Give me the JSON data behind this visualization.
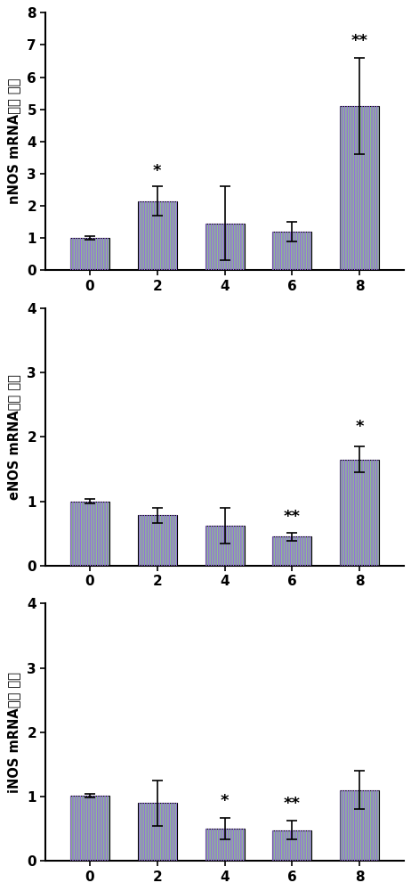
{
  "subplots": [
    {
      "ylabel": "nNOS mRNA相对 表达",
      "ylim": [
        0,
        8
      ],
      "yticks": [
        0,
        1,
        2,
        3,
        4,
        5,
        6,
        7,
        8
      ],
      "categories": [
        "0",
        "2",
        "4",
        "6",
        "8"
      ],
      "values": [
        1.0,
        2.15,
        1.45,
        1.2,
        5.1
      ],
      "errors": [
        0.05,
        0.45,
        1.15,
        0.3,
        1.5
      ],
      "annotations": [
        "",
        "*",
        "",
        "",
        "**"
      ],
      "ann_offsets": [
        0,
        0.1,
        0,
        0,
        0.15
      ]
    },
    {
      "ylabel": "eNOS mRNA相对 表达",
      "ylim": [
        0,
        4
      ],
      "yticks": [
        0,
        1,
        2,
        3,
        4
      ],
      "categories": [
        "0",
        "2",
        "4",
        "6",
        "8"
      ],
      "values": [
        1.0,
        0.78,
        0.62,
        0.45,
        1.65
      ],
      "errors": [
        0.04,
        0.12,
        0.28,
        0.06,
        0.2
      ],
      "annotations": [
        "",
        "",
        "",
        "**",
        "*"
      ],
      "ann_offsets": [
        0,
        0,
        0,
        0.06,
        0.12
      ]
    },
    {
      "ylabel": "iNOS mRNA相对 表达",
      "ylim": [
        0,
        4
      ],
      "yticks": [
        0,
        1,
        2,
        3,
        4
      ],
      "categories": [
        "0",
        "2",
        "4",
        "6",
        "8"
      ],
      "values": [
        1.01,
        0.9,
        0.5,
        0.48,
        1.1
      ],
      "errors": [
        0.03,
        0.35,
        0.17,
        0.14,
        0.3
      ],
      "annotations": [
        "",
        "",
        "*",
        "**",
        ""
      ],
      "ann_offsets": [
        0,
        0,
        0.08,
        0.08,
        0
      ]
    }
  ],
  "bar_color": "#8fbc8f",
  "hatch_color": "#9370db",
  "hatch_pattern": "||||||",
  "bar_width": 0.58,
  "ylabel_fontsize": 10.5,
  "tick_fontsize": 11,
  "annotation_fontsize": 13,
  "background_color": "#ffffff",
  "figure_width": 4.62,
  "figure_height": 10.0,
  "dpi": 100
}
